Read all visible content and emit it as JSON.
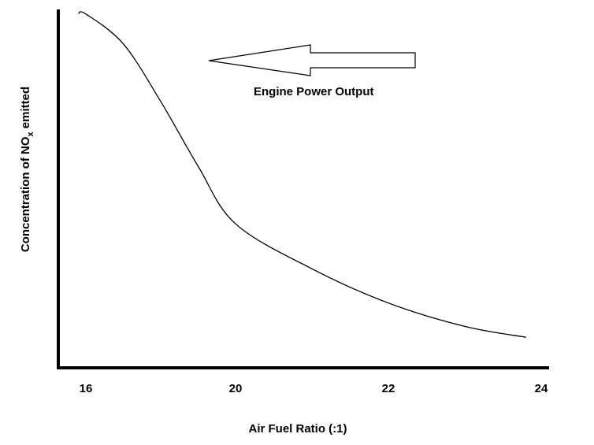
{
  "chart_data": {
    "type": "line",
    "title": "",
    "xlabel": "Air Fuel Ratio (:1)",
    "ylabel": {
      "prefix": "Concentration of NO",
      "subscript": "x",
      "suffix": " emitted"
    },
    "x_ticks": [
      "16",
      "20",
      "22",
      "24"
    ],
    "y_ticks": [],
    "grid": false,
    "annotation": {
      "text": "Engine Power Output",
      "arrow_direction": "left"
    },
    "series": [
      {
        "values_note": "relative concentration, y axis unlabeled (0 = x axis, 1 = top of plot)",
        "x": [
          "15.8",
          "16.0",
          "17.0",
          "18.0",
          "19.0",
          "20.0",
          "21.0",
          "22.0",
          "23.0",
          "23.8"
        ],
        "y": [
          0.984,
          0.983,
          0.9,
          0.74,
          0.56,
          0.4,
          0.275,
          0.18,
          0.115,
          0.085
        ]
      }
    ],
    "colors": {
      "line": "#000000",
      "axes": "#000000",
      "arrow_fill": "#ffffff"
    }
  }
}
